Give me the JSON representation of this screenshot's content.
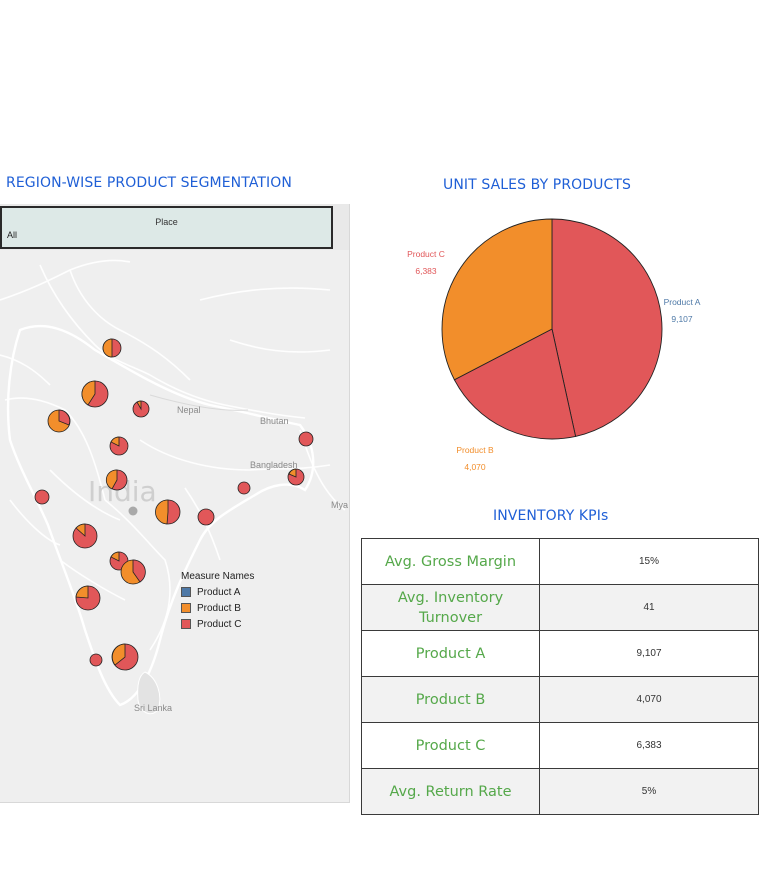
{
  "titles": {
    "map": "REGION-WISE PRODUCT SEGMENTATION",
    "pie": "UNIT SALES BY PRODUCTS",
    "kpi": "INVENTORY KPIs"
  },
  "filter": {
    "label": "Place",
    "value": "All"
  },
  "map": {
    "labels": {
      "country": "India",
      "nepal": "Nepal",
      "bhutan": "Bhutan",
      "bangladesh": "Bangladesh",
      "srilanka": "Sri Lanka",
      "myanmar": "Mya"
    }
  },
  "legend": {
    "title": "Measure Names",
    "items": [
      {
        "label": "Product A",
        "color": "#4e79a7"
      },
      {
        "label": "Product B",
        "color": "#f28e2b"
      },
      {
        "label": "Product C",
        "color": "#e15759"
      }
    ]
  },
  "colors": {
    "product_a": "#4e79a7",
    "product_b": "#f28e2b",
    "product_c": "#e15759",
    "title": "#1f5fd6",
    "kpi_label": "#55a84a"
  },
  "chart_data": {
    "type": "pie",
    "slices": [
      {
        "label": "Product A",
        "value": 9107,
        "value_label": "9,107",
        "color": "#e15759",
        "label_color": "#4e79a7"
      },
      {
        "label": "Product B",
        "value": 4070,
        "value_label": "4,070",
        "color": "#e15759",
        "label_color": "#f28e2b"
      },
      {
        "label": "Product C",
        "value": 6383,
        "value_label": "6,383",
        "color": "#f28e2b",
        "label_color": "#e15759"
      }
    ]
  },
  "kpis": [
    {
      "label": "Avg. Gross Margin",
      "value": "15%"
    },
    {
      "label": "Avg. Inventory Turnover",
      "value": "41"
    },
    {
      "label": "Product A",
      "value": "9,107"
    },
    {
      "label": "Product B",
      "value": "4,070"
    },
    {
      "label": "Product C",
      "value": "6,383"
    },
    {
      "label": "Avg. Return Rate",
      "value": "5%"
    }
  ]
}
